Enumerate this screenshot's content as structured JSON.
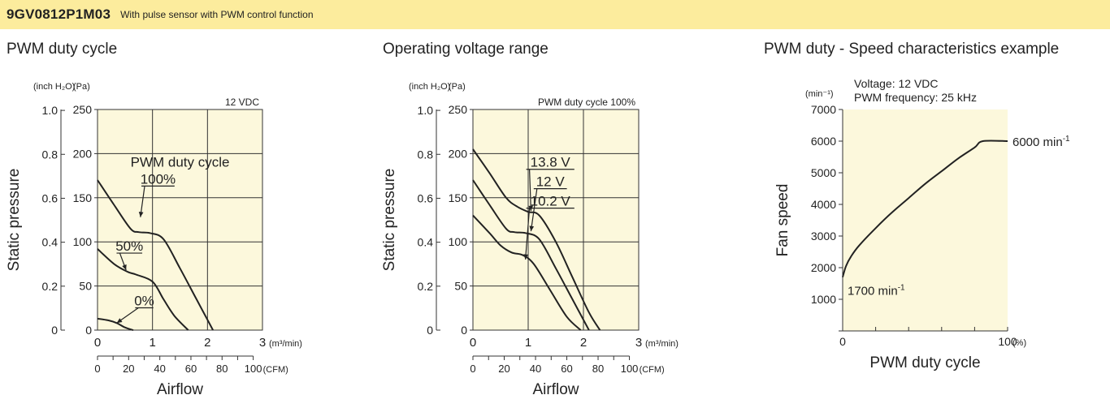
{
  "header": {
    "model": "9GV0812P1M03",
    "description": "With pulse sensor with PWM control function"
  },
  "colors": {
    "banner": "#fcec9d",
    "plot_bg": "#fcf8dc",
    "line": "#222222",
    "grid": "#333333"
  },
  "chart_data": [
    {
      "type": "line",
      "title": "PWM duty cycle",
      "xlabel": "Airflow",
      "ylabel": "Static pressure",
      "x_primary_unit": "(m³/min)",
      "x_secondary_unit": "(CFM)",
      "y_primary_unit": "(Pa)",
      "y_secondary_unit": "(inch H₂O)",
      "xlim": [
        0,
        3
      ],
      "ylim": [
        0,
        250
      ],
      "x_ticks": [
        0,
        1,
        2,
        3
      ],
      "x_tick_labels": [
        "0",
        "1",
        "2",
        "3"
      ],
      "y_ticks": [
        0,
        50,
        100,
        150,
        200,
        250
      ],
      "y_tick_labels": [
        "0",
        "50",
        "100",
        "150",
        "200",
        "250"
      ],
      "y2_ticks_pa": [
        0,
        49.8,
        99.6,
        149.4,
        199.2,
        249
      ],
      "y2_tick_labels": [
        "0",
        "0.2",
        "0.4",
        "0.6",
        "0.8",
        "1.0"
      ],
      "x2_ticks_m3": [
        0,
        0.283,
        0.566,
        0.849,
        1.133,
        1.416,
        1.699,
        1.982,
        2.265,
        2.548,
        2.832
      ],
      "x2_tick_labels": [
        "0",
        "",
        "20",
        "",
        "40",
        "",
        "60",
        "",
        "80",
        "",
        "100"
      ],
      "condition": "12 VDC",
      "legend_title": "PWM duty cycle",
      "series": [
        {
          "name": "100%",
          "points": [
            [
              0,
              170
            ],
            [
              0.3,
              142
            ],
            [
              0.6,
              115
            ],
            [
              0.75,
              111
            ],
            [
              0.95,
              110
            ],
            [
              1.2,
              103
            ],
            [
              1.5,
              70
            ],
            [
              1.8,
              35
            ],
            [
              2.1,
              0
            ]
          ]
        },
        {
          "name": "50%",
          "points": [
            [
              0,
              92
            ],
            [
              0.3,
              75
            ],
            [
              0.55,
              66
            ],
            [
              0.7,
              63
            ],
            [
              1.0,
              55
            ],
            [
              1.2,
              35
            ],
            [
              1.4,
              16
            ],
            [
              1.65,
              0
            ]
          ]
        },
        {
          "name": "0%",
          "points": [
            [
              0,
              13
            ],
            [
              0.2,
              11
            ],
            [
              0.35,
              8
            ],
            [
              0.5,
              3
            ],
            [
              0.65,
              0
            ]
          ]
        }
      ],
      "annotations": [
        {
          "text": "PWM duty cycle",
          "kind": "legend-title"
        },
        {
          "text": "100%",
          "series": "100%",
          "label_at": [
            1.1,
            166
          ],
          "arrow_to": [
            0.78,
            128
          ]
        },
        {
          "text": "50%",
          "series": "50%",
          "label_at": [
            0.58,
            90
          ],
          "arrow_to": [
            0.52,
            68
          ]
        },
        {
          "text": "0%",
          "series": "0%",
          "label_at": [
            0.85,
            28
          ],
          "arrow_to": [
            0.35,
            8
          ]
        }
      ]
    },
    {
      "type": "line",
      "title": "Operating voltage range",
      "xlabel": "Airflow",
      "ylabel": "Static pressure",
      "x_primary_unit": "(m³/min)",
      "x_secondary_unit": "(CFM)",
      "y_primary_unit": "(Pa)",
      "y_secondary_unit": "(inch H₂O)",
      "xlim": [
        0,
        3
      ],
      "ylim": [
        0,
        250
      ],
      "x_ticks": [
        0,
        1,
        2,
        3
      ],
      "x_tick_labels": [
        "0",
        "1",
        "2",
        "3"
      ],
      "y_ticks": [
        0,
        50,
        100,
        150,
        200,
        250
      ],
      "y_tick_labels": [
        "0",
        "50",
        "100",
        "150",
        "200",
        "250"
      ],
      "y2_ticks_pa": [
        0,
        49.8,
        99.6,
        149.4,
        199.2,
        249
      ],
      "y2_tick_labels": [
        "0",
        "0.2",
        "0.4",
        "0.6",
        "0.8",
        "1.0"
      ],
      "x2_ticks_m3": [
        0,
        0.283,
        0.566,
        0.849,
        1.133,
        1.416,
        1.699,
        1.982,
        2.265,
        2.548,
        2.832
      ],
      "x2_tick_labels": [
        "0",
        "",
        "20",
        "",
        "40",
        "",
        "60",
        "",
        "80",
        "",
        "100"
      ],
      "condition": "PWM duty cycle 100%",
      "series": [
        {
          "name": "13.8 V",
          "points": [
            [
              0,
              205
            ],
            [
              0.3,
              178
            ],
            [
              0.6,
              150
            ],
            [
              0.8,
              140
            ],
            [
              1.0,
              134
            ],
            [
              1.2,
              130
            ],
            [
              1.5,
              100
            ],
            [
              1.8,
              60
            ],
            [
              2.1,
              20
            ],
            [
              2.3,
              0
            ]
          ]
        },
        {
          "name": "12 V",
          "points": [
            [
              0,
              170
            ],
            [
              0.3,
              142
            ],
            [
              0.6,
              115
            ],
            [
              0.75,
              111
            ],
            [
              0.95,
              110
            ],
            [
              1.2,
              103
            ],
            [
              1.5,
              70
            ],
            [
              1.8,
              35
            ],
            [
              2.1,
              0
            ]
          ]
        },
        {
          "name": "10.2 V",
          "points": [
            [
              0,
              130
            ],
            [
              0.3,
              110
            ],
            [
              0.5,
              96
            ],
            [
              0.7,
              88
            ],
            [
              0.9,
              85
            ],
            [
              1.1,
              75
            ],
            [
              1.4,
              45
            ],
            [
              1.7,
              15
            ],
            [
              1.95,
              0
            ]
          ]
        }
      ],
      "annotations": [
        {
          "text": "13.8 V",
          "series": "13.8 V",
          "label_at": [
            1.4,
            185
          ],
          "arrow_to": [
            1.05,
            135
          ]
        },
        {
          "text": "12 V",
          "series": "12 V",
          "label_at": [
            1.4,
            163
          ],
          "arrow_to": [
            1.05,
            112
          ]
        },
        {
          "text": "10.2 V",
          "series": "10.2 V",
          "label_at": [
            1.4,
            141
          ],
          "arrow_to": [
            0.95,
            80
          ]
        }
      ]
    },
    {
      "type": "line",
      "title": "PWM duty - Speed characteristics example",
      "xlabel": "PWM duty cycle",
      "ylabel": "Fan speed",
      "x_unit": "(%)",
      "y_unit": "(min⁻¹)",
      "xlim": [
        0,
        100
      ],
      "ylim": [
        0,
        7000
      ],
      "x_ticks": [
        0,
        20,
        40,
        60,
        80,
        100
      ],
      "x_tick_labels": [
        "0",
        "",
        "",
        "",
        "",
        "100"
      ],
      "y_ticks": [
        0,
        1000,
        2000,
        3000,
        4000,
        5000,
        6000,
        7000
      ],
      "y_tick_labels": [
        "",
        "1000",
        "2000",
        "3000",
        "4000",
        "5000",
        "6000",
        "7000"
      ],
      "notes": [
        "Voltage: 12 VDC",
        "PWM frequency: 25 kHz"
      ],
      "series": [
        {
          "name": "Fan speed",
          "points": [
            [
              0,
              1700
            ],
            [
              2,
              2050
            ],
            [
              5,
              2350
            ],
            [
              10,
              2700
            ],
            [
              20,
              3250
            ],
            [
              30,
              3750
            ],
            [
              40,
              4200
            ],
            [
              50,
              4650
            ],
            [
              60,
              5050
            ],
            [
              70,
              5450
            ],
            [
              80,
              5800
            ],
            [
              85,
              6000
            ],
            [
              100,
              6000
            ]
          ]
        }
      ],
      "annotations": [
        {
          "text": "1700 min",
          "superscript": "-1",
          "anchor": [
            0,
            1700
          ]
        },
        {
          "text": "6000 min",
          "superscript": "-1",
          "anchor": [
            100,
            6000
          ]
        }
      ]
    }
  ]
}
